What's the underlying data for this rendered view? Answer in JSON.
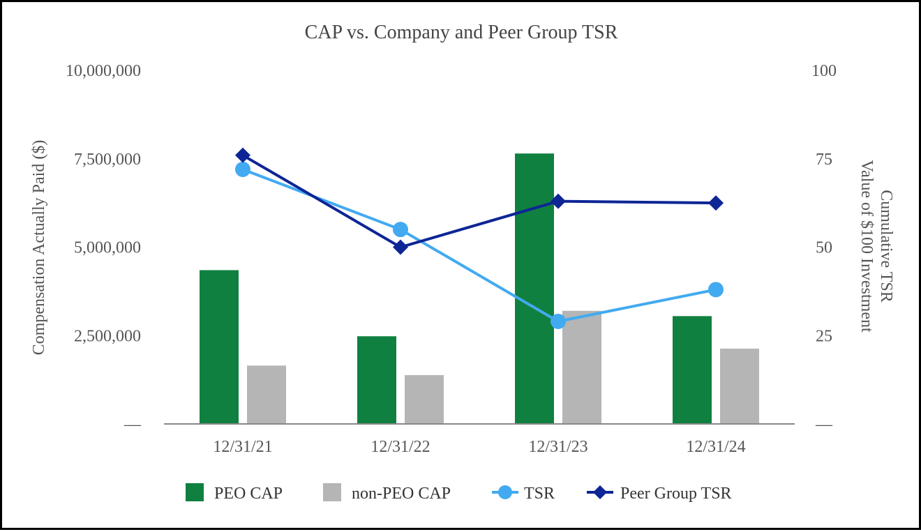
{
  "chart_data": {
    "type": "bar",
    "title": "CAP vs. Company and Peer Group TSR",
    "categories": [
      "12/31/21",
      "12/31/22",
      "12/31/23",
      "12/31/24"
    ],
    "ylabel": "Compensation Actually Paid ($)",
    "y2label_line1": "Cumulative TSR",
    "y2label_line2": "Value of $100 Investment",
    "ylim": [
      0,
      10000000
    ],
    "y2lim": [
      0,
      100
    ],
    "yticks": [
      "—",
      "2,500,000",
      "5,000,000",
      "7,500,000",
      "10,000,000"
    ],
    "y2ticks": [
      "—",
      "25",
      "50",
      "75",
      "100"
    ],
    "bar_series": [
      {
        "name": "PEO CAP",
        "color": "#108040",
        "values": [
          4350000,
          2480000,
          7650000,
          3050000
        ]
      },
      {
        "name": "non-PEO CAP",
        "color": "#b5b5b5",
        "values": [
          1650000,
          1380000,
          3200000,
          2130000
        ]
      }
    ],
    "line_series": [
      {
        "name": "TSR",
        "color": "#42aaf0",
        "marker": "circle",
        "values": [
          72,
          55,
          29,
          38
        ]
      },
      {
        "name": "Peer Group TSR",
        "color": "#0d2595",
        "marker": "diamond",
        "values": [
          76,
          50,
          63,
          62.5
        ]
      }
    ],
    "legend": [
      "PEO CAP",
      "non-PEO CAP",
      "TSR",
      "Peer Group TSR"
    ],
    "legend_position": "bottom"
  }
}
